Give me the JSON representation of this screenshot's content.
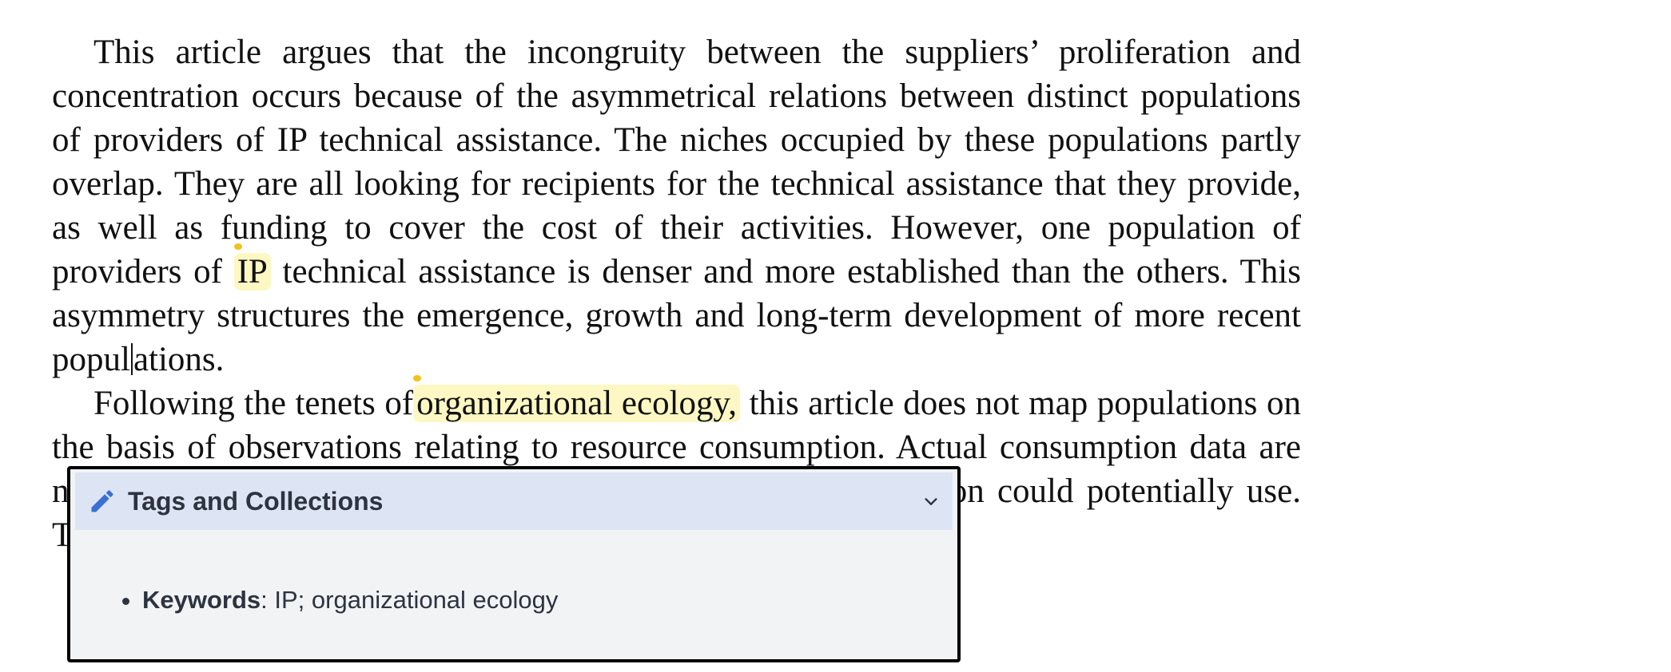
{
  "article": {
    "p1": {
      "text_before": "This article argues that the incongruity between the suppliers’ proliferation and concentration occurs because of the asymmetrical relations between distinct popula­tions of providers of IP technical assistance. The niches occupied by these populations partly overlap. They are all looking for recipients for the technical assistance that they provide, as well as funding to cover the cost of their activities. However, one population of providers of ",
      "highlight": "IP",
      "text_after": " technical assistance is denser and more established than the others. This asymmetry structures the emergence, growth and long-term development of more recent popul",
      "text_after_caret": "ations."
    },
    "p2": {
      "text_before": "Following the tenets of",
      "highlight": "organizational ecology,",
      "text_after": " this article does not map populations on the basis of observations relating to resource consumption. Actual consumption data are not available, and it is not clear which resources each population could potentially use. This"
    }
  },
  "popup": {
    "title": "Tags and Collections",
    "pencil_icon": "pencil-icon",
    "chevron_icon": "chevron-down-icon",
    "keywords_label": "Keywords",
    "keywords_value": ": IP; organizational ecology"
  },
  "colors": {
    "highlight": "#fdf8c3",
    "highlight_marker": "#f2c21b",
    "popup_header_bg": "#dde5f4",
    "popup_bg": "#f1f3f5",
    "pencil": "#3b6fd4"
  }
}
